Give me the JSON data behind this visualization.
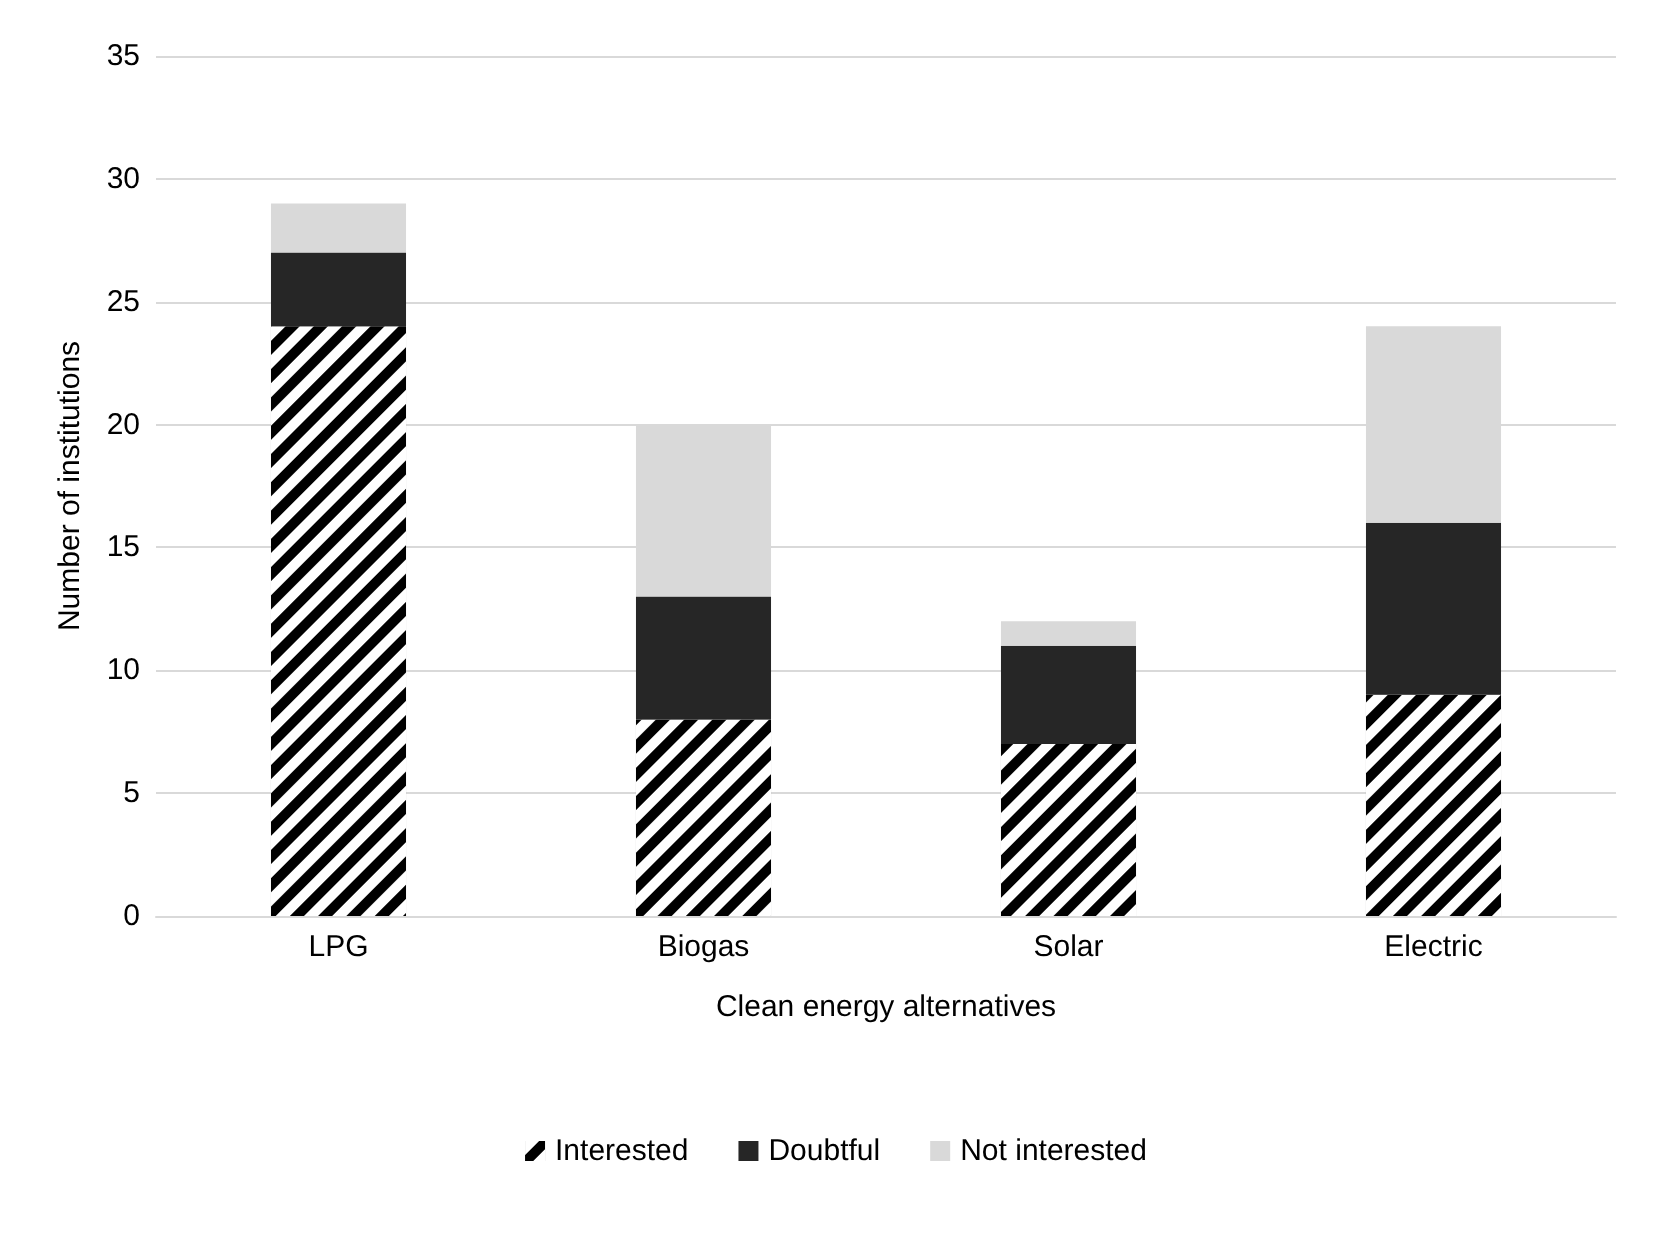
{
  "chart_data": {
    "type": "bar",
    "stacked": true,
    "xlabel": "Clean energy alternatives",
    "ylabel": "Number of institutions",
    "categories": [
      "LPG",
      "Biogas",
      "Solar",
      "Electric"
    ],
    "series": [
      {
        "name": "Interested",
        "color": "#000000",
        "values": [
          24,
          8,
          7,
          9
        ]
      },
      {
        "name": "Doubtful",
        "color": "#262626",
        "values": [
          3,
          5,
          4,
          7
        ]
      },
      {
        "name": "Not interested",
        "color": "#d9d9d9",
        "values": [
          2,
          7,
          1,
          8
        ]
      }
    ],
    "ylim": [
      0,
      35
    ],
    "yticks": [
      0,
      5,
      10,
      15,
      20,
      25,
      30,
      35
    ],
    "grid": "y",
    "legend": "bottom"
  }
}
